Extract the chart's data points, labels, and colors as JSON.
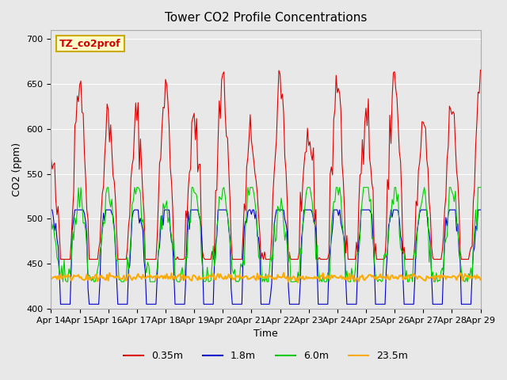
{
  "title": "Tower CO2 Profile Concentrations",
  "xlabel": "Time",
  "ylabel": "CO2 (ppm)",
  "ylim": [
    400,
    710
  ],
  "xlim": [
    0,
    360
  ],
  "background_color": "#e8e8e8",
  "plot_bg_color": "#e8e8e8",
  "grid_color": "#ffffff",
  "annotation_text": "TZ_co2prof",
  "annotation_color": "#cc0000",
  "annotation_bg": "#ffffcc",
  "annotation_border": "#ccaa00",
  "colors": {
    "0.35m": "#dd0000",
    "1.8m": "#0000cc",
    "6.0m": "#00cc00",
    "23.5m": "#ffaa00"
  },
  "legend_labels": [
    "0.35m",
    "1.8m",
    "6.0m",
    "23.5m"
  ],
  "xtick_labels": [
    "Apr 14",
    "Apr 15",
    "Apr 16",
    "Apr 17",
    "Apr 18",
    "Apr 19",
    "Apr 20",
    "Apr 21",
    "Apr 22",
    "Apr 23",
    "Apr 24",
    "Apr 25",
    "Apr 26",
    "Apr 27",
    "Apr 28",
    "Apr 29"
  ],
  "xtick_positions": [
    0,
    24,
    48,
    72,
    96,
    120,
    144,
    168,
    192,
    216,
    240,
    264,
    288,
    312,
    336,
    360
  ]
}
